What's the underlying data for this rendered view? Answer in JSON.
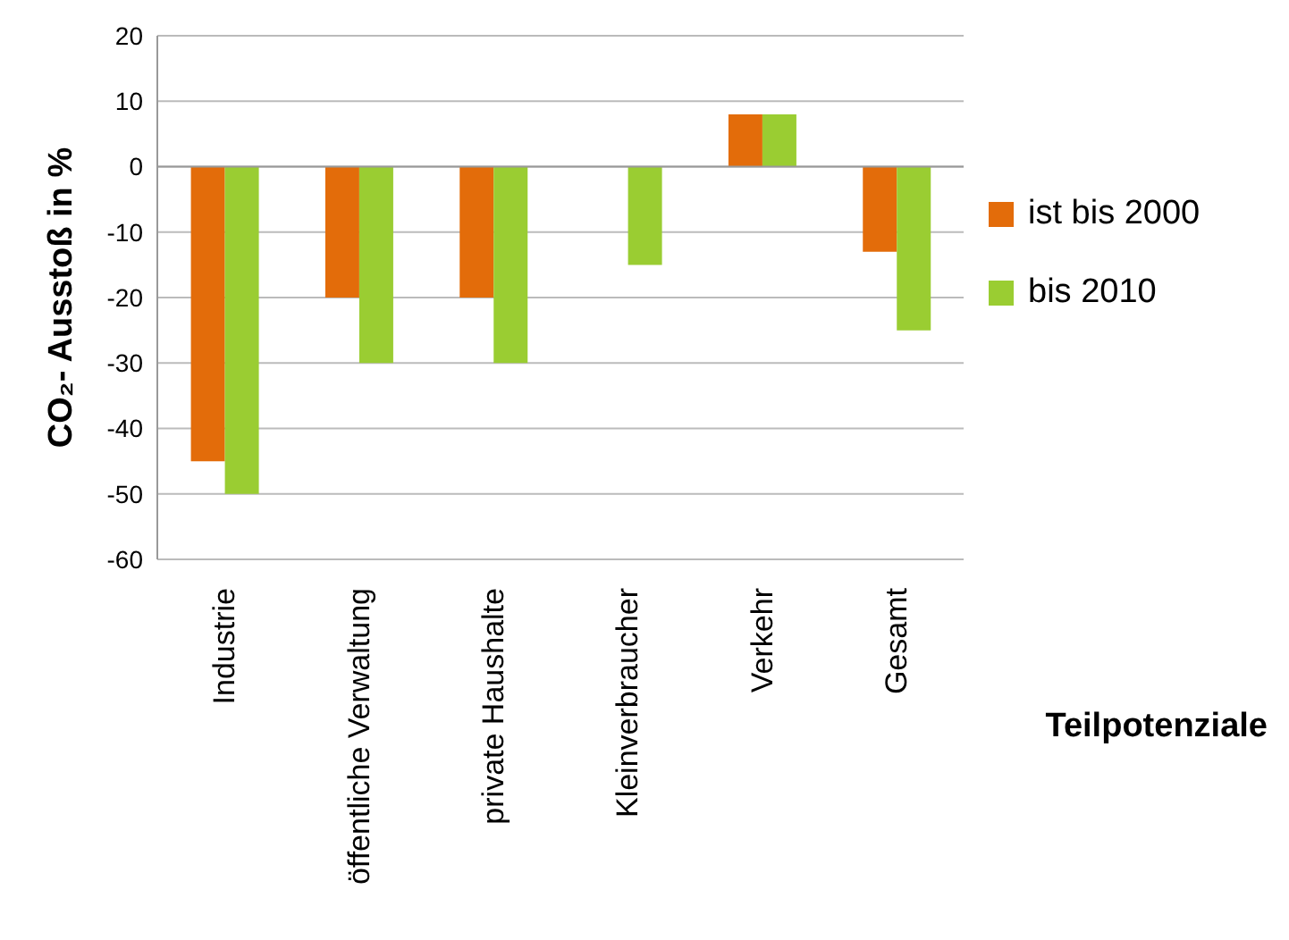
{
  "chart_data": {
    "type": "bar",
    "ylabel": "CO₂- Ausstoß in %",
    "xlabel": "Teilpotenziale",
    "categories": [
      "Industrie",
      "öffentliche Verwaltung",
      "private Haushalte",
      "Kleinverbraucher",
      "Verkehr",
      "Gesamt"
    ],
    "series": [
      {
        "name": "ist bis 2000",
        "color": "#e36c0a",
        "values": [
          -45,
          -20,
          -20,
          null,
          8,
          -13
        ]
      },
      {
        "name": "bis 2010",
        "color": "#9acd32",
        "values": [
          -50,
          -30,
          -30,
          -15,
          8,
          -25
        ]
      }
    ],
    "ylim": [
      -60,
      20
    ],
    "yticks": [
      -60,
      -50,
      -40,
      -30,
      -20,
      -10,
      0,
      10,
      20
    ],
    "grid": "y",
    "legend": "right"
  }
}
